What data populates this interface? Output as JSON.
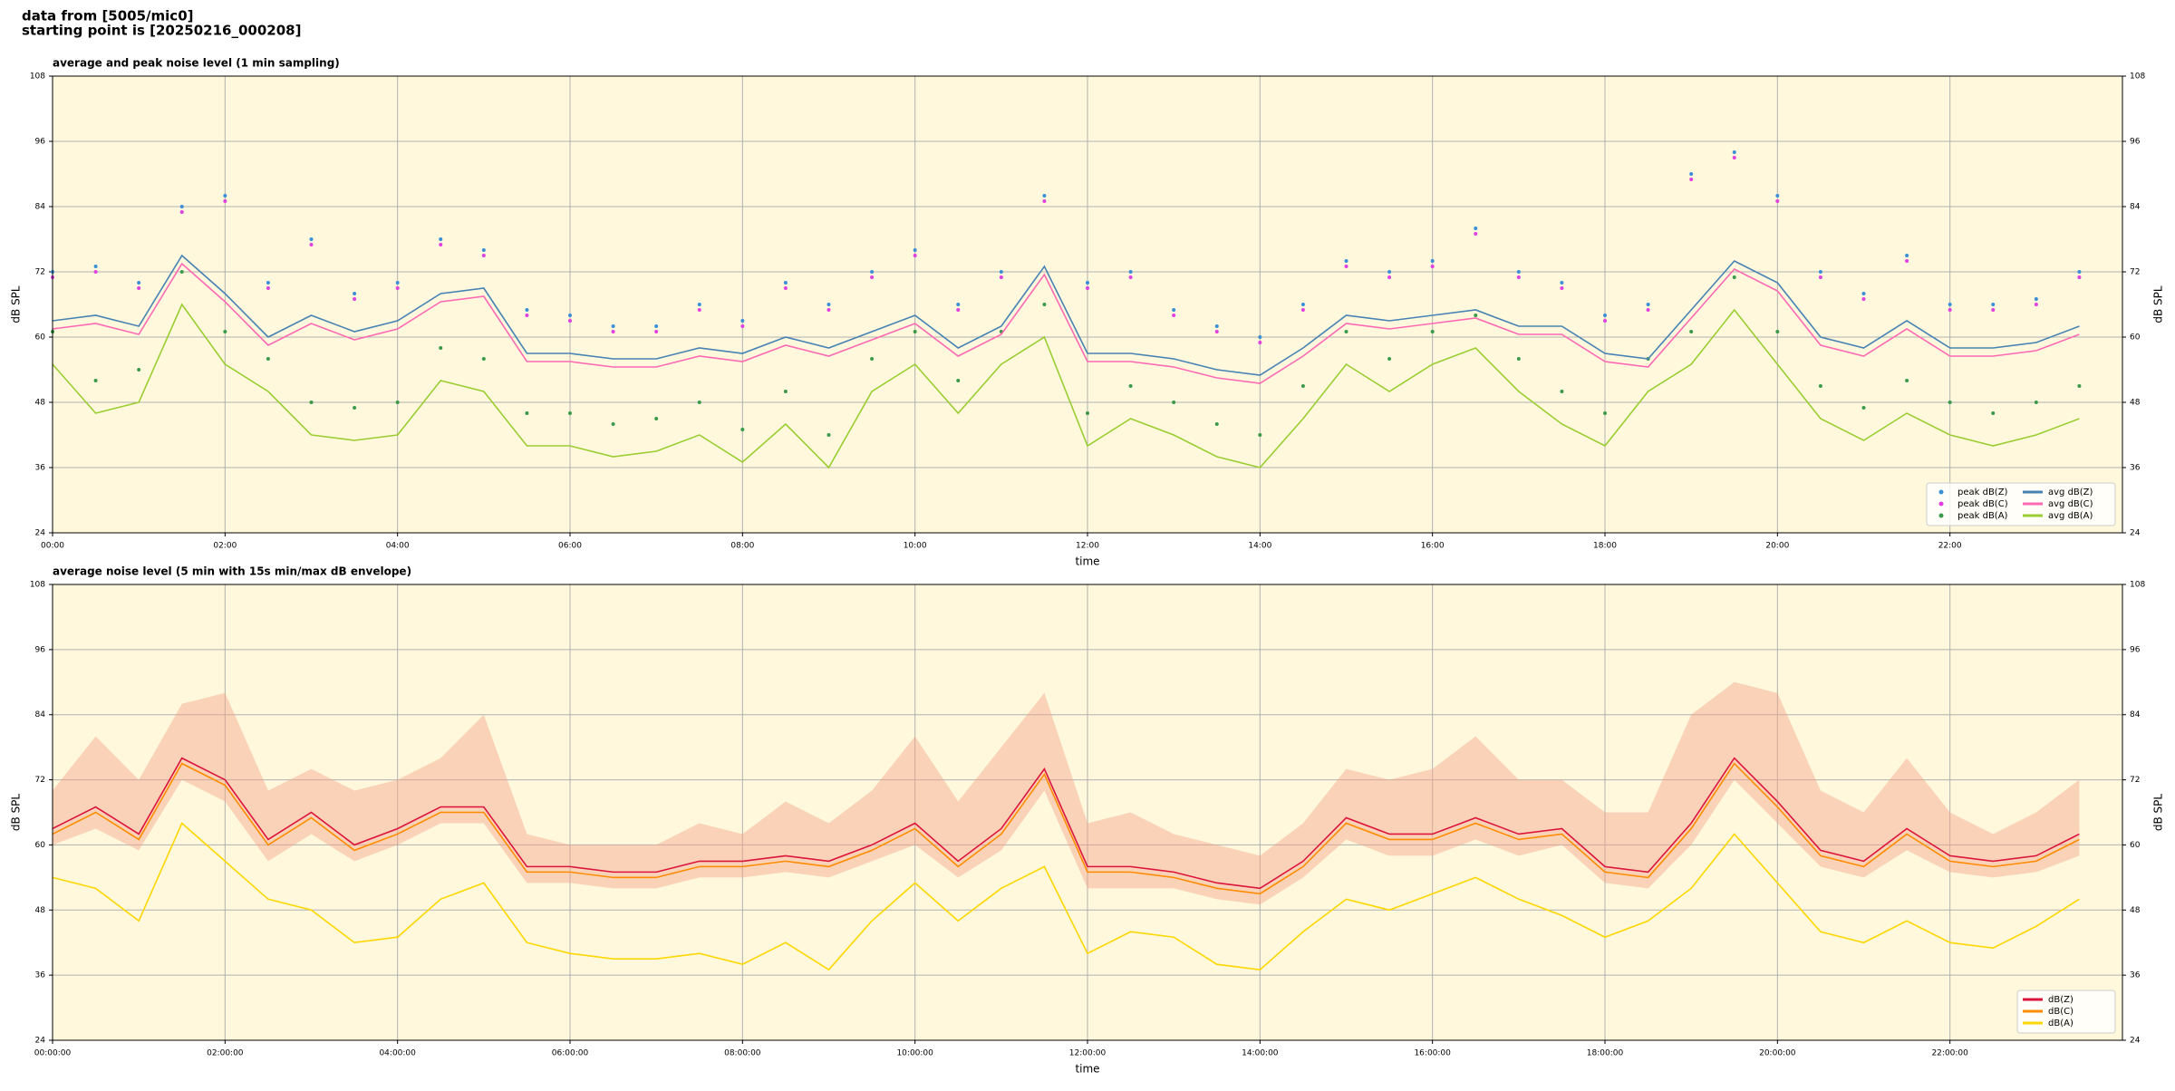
{
  "header": {
    "line1": "data from [5005/mic0]",
    "line2": "starting point is [20250216_000208]"
  },
  "chart_data": [
    {
      "type": "line",
      "title": "average and peak noise level (1 min sampling)",
      "xlabel": "time",
      "ylabel": "dB SPL",
      "background": "#fff8dc",
      "grid": true,
      "legend": "lower right",
      "legend_columns": 2,
      "x": [
        0,
        0.5,
        1,
        1.5,
        2,
        2.5,
        3,
        3.5,
        4,
        4.5,
        5,
        5.5,
        6,
        6.5,
        7,
        7.5,
        8,
        8.5,
        9,
        9.5,
        10,
        10.5,
        11,
        11.5,
        12,
        12.5,
        13,
        13.5,
        14,
        14.5,
        15,
        15.5,
        16,
        16.5,
        17,
        17.5,
        18,
        18.5,
        19,
        19.5,
        20,
        20.5,
        21,
        21.5,
        22,
        22.5,
        23,
        23.5
      ],
      "xlim": [
        0,
        24
      ],
      "xticks": [
        {
          "value": 0,
          "label": "00:00"
        },
        {
          "value": 2,
          "label": "02:00"
        },
        {
          "value": 4,
          "label": "04:00"
        },
        {
          "value": 6,
          "label": "06:00"
        },
        {
          "value": 8,
          "label": "08:00"
        },
        {
          "value": 10,
          "label": "10:00"
        },
        {
          "value": 12,
          "label": "12:00"
        },
        {
          "value": 14,
          "label": "14:00"
        },
        {
          "value": 16,
          "label": "16:00"
        },
        {
          "value": 18,
          "label": "18:00"
        },
        {
          "value": 20,
          "label": "20:00"
        },
        {
          "value": 22,
          "label": "22:00"
        }
      ],
      "ylim": [
        24,
        108
      ],
      "yticks": [
        24,
        36,
        48,
        60,
        72,
        84,
        96,
        108
      ],
      "series": [
        {
          "name": "peak dB(Z)",
          "style": "markers",
          "color": "#3a8fd6",
          "values": [
            72,
            73,
            70,
            84,
            86,
            70,
            78,
            68,
            70,
            78,
            76,
            65,
            64,
            62,
            62,
            66,
            63,
            70,
            66,
            72,
            76,
            66,
            72,
            86,
            70,
            72,
            65,
            62,
            60,
            66,
            74,
            72,
            74,
            80,
            72,
            70,
            64,
            66,
            90,
            94,
            86,
            72,
            68,
            75,
            66,
            66,
            67,
            72
          ]
        },
        {
          "name": "peak dB(C)",
          "style": "markers",
          "color": "#e040e0",
          "values": [
            71,
            72,
            69,
            83,
            85,
            69,
            77,
            67,
            69,
            77,
            75,
            64,
            63,
            61,
            61,
            65,
            62,
            69,
            65,
            71,
            75,
            65,
            71,
            85,
            69,
            71,
            64,
            61,
            59,
            65,
            73,
            71,
            73,
            79,
            71,
            69,
            63,
            65,
            89,
            93,
            85,
            71,
            67,
            74,
            65,
            65,
            66,
            71
          ]
        },
        {
          "name": "peak dB(A)",
          "style": "markers",
          "color": "#3a9a4a",
          "values": [
            61,
            52,
            54,
            72,
            61,
            56,
            48,
            47,
            48,
            58,
            56,
            46,
            46,
            44,
            45,
            48,
            43,
            50,
            42,
            56,
            61,
            52,
            61,
            66,
            46,
            51,
            48,
            44,
            42,
            51,
            61,
            56,
            61,
            64,
            56,
            50,
            46,
            56,
            61,
            71,
            61,
            51,
            47,
            52,
            48,
            46,
            48,
            51
          ]
        },
        {
          "name": "avg dB(Z)",
          "style": "line",
          "color": "#4682b4",
          "values": [
            63,
            64,
            62,
            75,
            68,
            60,
            64,
            61,
            63,
            68,
            69,
            57,
            57,
            56,
            56,
            58,
            57,
            60,
            58,
            61,
            64,
            58,
            62,
            73,
            57,
            57,
            56,
            54,
            53,
            58,
            64,
            63,
            64,
            65,
            62,
            62,
            57,
            56,
            65,
            74,
            70,
            60,
            58,
            63,
            58,
            58,
            59,
            62
          ]
        },
        {
          "name": "avg dB(C)",
          "style": "line",
          "color": "#ff69b4",
          "values": [
            61.5,
            62.5,
            60.5,
            73.5,
            66.5,
            58.5,
            62.5,
            59.5,
            61.5,
            66.5,
            67.5,
            55.5,
            55.5,
            54.5,
            54.5,
            56.5,
            55.5,
            58.5,
            56.5,
            59.5,
            62.5,
            56.5,
            60.5,
            71.5,
            55.5,
            55.5,
            54.5,
            52.5,
            51.5,
            56.5,
            62.5,
            61.5,
            62.5,
            63.5,
            60.5,
            60.5,
            55.5,
            54.5,
            63.5,
            72.5,
            68.5,
            58.5,
            56.5,
            61.5,
            56.5,
            56.5,
            57.5,
            60.5
          ]
        },
        {
          "name": "avg dB(A)",
          "style": "line",
          "color": "#9acd32",
          "values": [
            55,
            46,
            48,
            66,
            55,
            50,
            42,
            41,
            42,
            52,
            50,
            40,
            40,
            38,
            39,
            42,
            37,
            44,
            36,
            50,
            55,
            46,
            55,
            60,
            40,
            45,
            42,
            38,
            36,
            45,
            55,
            50,
            55,
            58,
            50,
            44,
            40,
            50,
            55,
            65,
            55,
            45,
            41,
            46,
            42,
            40,
            42,
            45
          ]
        }
      ]
    },
    {
      "type": "line",
      "title": "average noise level (5 min with 15s min/max dB envelope)",
      "xlabel": "time",
      "ylabel": "dB SPL",
      "background": "#fff8dc",
      "grid": true,
      "legend": "lower right",
      "legend_columns": 1,
      "x": [
        0,
        0.5,
        1,
        1.5,
        2,
        2.5,
        3,
        3.5,
        4,
        4.5,
        5,
        5.5,
        6,
        6.5,
        7,
        7.5,
        8,
        8.5,
        9,
        9.5,
        10,
        10.5,
        11,
        11.5,
        12,
        12.5,
        13,
        13.5,
        14,
        14.5,
        15,
        15.5,
        16,
        16.5,
        17,
        17.5,
        18,
        18.5,
        19,
        19.5,
        20,
        20.5,
        21,
        21.5,
        22,
        22.5,
        23,
        23.5
      ],
      "xlim": [
        0,
        24
      ],
      "xticks": [
        {
          "value": 0,
          "label": "00:00:00"
        },
        {
          "value": 2,
          "label": "02:00:00"
        },
        {
          "value": 4,
          "label": "04:00:00"
        },
        {
          "value": 6,
          "label": "06:00:00"
        },
        {
          "value": 8,
          "label": "08:00:00"
        },
        {
          "value": 10,
          "label": "10:00:00"
        },
        {
          "value": 12,
          "label": "12:00:00"
        },
        {
          "value": 14,
          "label": "14:00:00"
        },
        {
          "value": 16,
          "label": "16:00:00"
        },
        {
          "value": 18,
          "label": "18:00:00"
        },
        {
          "value": 20,
          "label": "20:00:00"
        },
        {
          "value": 22,
          "label": "22:00:00"
        }
      ],
      "ylim": [
        24,
        108
      ],
      "yticks": [
        24,
        36,
        48,
        60,
        72,
        84,
        96,
        108
      ],
      "band": {
        "color": "#f4a58a",
        "upper": [
          70,
          80,
          72,
          86,
          88,
          70,
          74,
          70,
          72,
          76,
          84,
          62,
          60,
          60,
          60,
          64,
          62,
          68,
          64,
          70,
          80,
          68,
          78,
          88,
          64,
          66,
          62,
          60,
          58,
          64,
          74,
          72,
          74,
          80,
          72,
          72,
          66,
          66,
          84,
          90,
          88,
          70,
          66,
          76,
          66,
          62,
          66,
          72
        ],
        "lower": [
          60,
          63,
          59,
          72,
          68,
          57,
          62,
          57,
          60,
          64,
          64,
          53,
          53,
          52,
          52,
          54,
          54,
          55,
          54,
          57,
          60,
          54,
          59,
          70,
          52,
          52,
          52,
          50,
          49,
          54,
          61,
          58,
          58,
          61,
          58,
          60,
          53,
          52,
          60,
          72,
          64,
          56,
          54,
          59,
          55,
          54,
          55,
          58
        ]
      },
      "series": [
        {
          "name": "dB(Z)",
          "style": "line",
          "color": "#dc143c",
          "values": [
            63,
            67,
            62,
            76,
            72,
            61,
            66,
            60,
            63,
            67,
            67,
            56,
            56,
            55,
            55,
            57,
            57,
            58,
            57,
            60,
            64,
            57,
            63,
            74,
            56,
            56,
            55,
            53,
            52,
            57,
            65,
            62,
            62,
            65,
            62,
            63,
            56,
            55,
            64,
            76,
            68,
            59,
            57,
            63,
            58,
            57,
            58,
            62
          ]
        },
        {
          "name": "dB(C)",
          "style": "line",
          "color": "#ff8c00",
          "values": [
            62,
            66,
            61,
            75,
            71,
            60,
            65,
            59,
            62,
            66,
            66,
            55,
            55,
            54,
            54,
            56,
            56,
            57,
            56,
            59,
            63,
            56,
            62,
            73,
            55,
            55,
            54,
            52,
            51,
            56,
            64,
            61,
            61,
            64,
            61,
            62,
            55,
            54,
            63,
            75,
            67,
            58,
            56,
            62,
            57,
            56,
            57,
            61
          ]
        },
        {
          "name": "dB(A)",
          "style": "line",
          "color": "#ffd700",
          "values": [
            54,
            52,
            46,
            64,
            57,
            50,
            48,
            42,
            43,
            50,
            53,
            42,
            40,
            39,
            39,
            40,
            38,
            42,
            37,
            46,
            53,
            46,
            52,
            56,
            40,
            44,
            43,
            38,
            37,
            44,
            50,
            48,
            51,
            54,
            50,
            47,
            43,
            46,
            52,
            62,
            53,
            44,
            42,
            46,
            42,
            41,
            45,
            50
          ]
        }
      ]
    }
  ]
}
